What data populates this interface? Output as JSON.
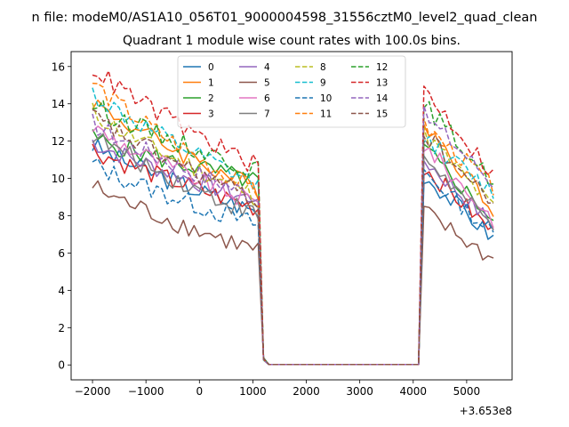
{
  "chart_data": {
    "type": "line",
    "suptitle": "n file: modeM0/AS1A10_056T01_9000004598_31556cztM0_level2_quad_clean",
    "title": "Quadrant 1 module wise count rates with 100.0s bins.",
    "xlabel": "",
    "ylabel": "",
    "x_offset_label": "+3.653e8",
    "xlim": [
      -2400,
      5850
    ],
    "ylim": [
      -0.8,
      16.8
    ],
    "xticks": [
      -2000,
      -1000,
      0,
      1000,
      2000,
      3000,
      4000,
      5000
    ],
    "xtick_labels": [
      "−2000",
      "−1000",
      "0",
      "1000",
      "2000",
      "3000",
      "4000",
      "5000"
    ],
    "yticks": [
      0,
      2,
      4,
      6,
      8,
      10,
      12,
      14,
      16
    ],
    "ytick_labels": [
      "0",
      "2",
      "4",
      "6",
      "8",
      "10",
      "12",
      "14",
      "16"
    ],
    "x": {
      "first_segment": [
        -2000,
        1100
      ],
      "gap_segment": [
        1200,
        4100
      ],
      "second_segment": [
        4200,
        5500
      ],
      "step": 100
    },
    "legend_location": "upper center",
    "series": [
      {
        "name": "0",
        "color": "#1f77b4",
        "dash": "solid",
        "first": [
          11.8,
          8.2
        ],
        "second": [
          10.2,
          6.8
        ]
      },
      {
        "name": "1",
        "color": "#ff7f0e",
        "dash": "solid",
        "first": [
          14.2,
          9.4
        ],
        "second": [
          13.0,
          8.4
        ]
      },
      {
        "name": "2",
        "color": "#2ca02c",
        "dash": "solid",
        "first": [
          12.2,
          9.8
        ],
        "second": [
          11.6,
          7.8
        ]
      },
      {
        "name": "3",
        "color": "#d62728",
        "dash": "solid",
        "first": [
          11.6,
          8.4
        ],
        "second": [
          10.6,
          7.1
        ]
      },
      {
        "name": "4",
        "color": "#9467bd",
        "dash": "solid",
        "first": [
          12.0,
          8.8
        ],
        "second": [
          11.0,
          7.5
        ]
      },
      {
        "name": "5",
        "color": "#8c564b",
        "dash": "solid",
        "first": [
          9.6,
          6.1
        ],
        "second": [
          8.2,
          5.6
        ]
      },
      {
        "name": "6",
        "color": "#e377c2",
        "dash": "solid",
        "first": [
          12.8,
          8.6
        ],
        "second": [
          11.8,
          7.8
        ]
      },
      {
        "name": "7",
        "color": "#7f7f7f",
        "dash": "solid",
        "first": [
          12.4,
          8.0
        ],
        "second": [
          11.2,
          7.3
        ]
      },
      {
        "name": "8",
        "color": "#bcbd22",
        "dash": "dashed",
        "first": [
          13.6,
          9.0
        ],
        "second": [
          12.4,
          8.4
        ]
      },
      {
        "name": "9",
        "color": "#17becf",
        "dash": "dashed",
        "first": [
          14.6,
          9.6
        ],
        "second": [
          12.2,
          9.2
        ]
      },
      {
        "name": "10",
        "color": "#1f77b4",
        "dash": "dashed",
        "first": [
          10.8,
          7.5
        ],
        "second": [
          10.4,
          7.0
        ]
      },
      {
        "name": "11",
        "color": "#ff7f0e",
        "dash": "dashed",
        "first": [
          15.2,
          9.2
        ],
        "second": [
          12.8,
          9.6
        ]
      },
      {
        "name": "12",
        "color": "#2ca02c",
        "dash": "dashed",
        "first": [
          14.0,
          10.4
        ],
        "second": [
          14.0,
          9.8
        ]
      },
      {
        "name": "13",
        "color": "#d62728",
        "dash": "dashed",
        "first": [
          16.0,
          10.6
        ],
        "second": [
          14.8,
          10.2
        ]
      },
      {
        "name": "14",
        "color": "#9467bd",
        "dash": "dashed",
        "first": [
          13.0,
          9.0
        ],
        "second": [
          13.4,
          9.8
        ]
      },
      {
        "name": "15",
        "color": "#8c564b",
        "dash": "dashed",
        "first": [
          13.4,
          8.8
        ],
        "second": [
          12.4,
          8.6
        ]
      }
    ]
  }
}
